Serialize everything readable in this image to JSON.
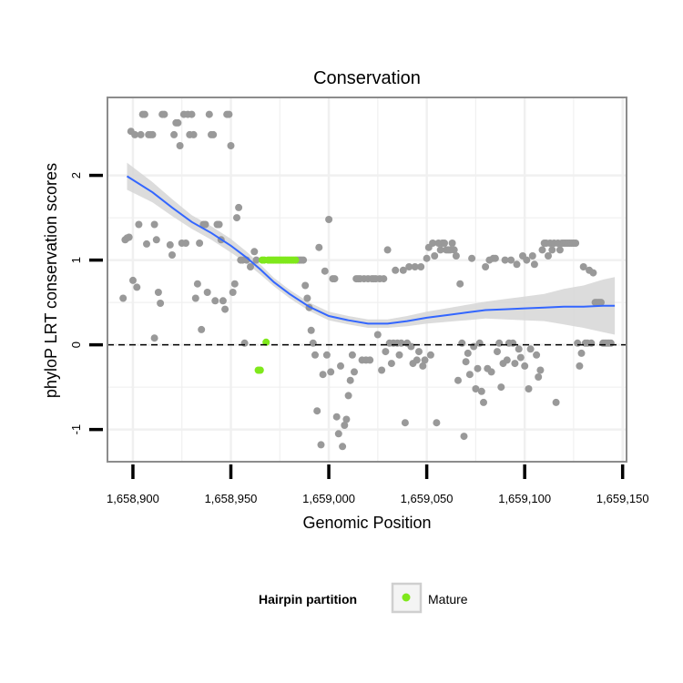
{
  "chart_data": {
    "type": "scatter",
    "title": "Conservation",
    "xlabel": "Genomic Position",
    "ylabel": "phyloP LRT conservation scores",
    "xlim": [
      1658887,
      1659152
    ],
    "ylim": [
      -1.38,
      2.92
    ],
    "x_ticks": [
      {
        "value": 1658900,
        "label": "1,658,900"
      },
      {
        "value": 1658950,
        "label": "1,658,950"
      },
      {
        "value": 1659000,
        "label": "1,659,000"
      },
      {
        "value": 1659050,
        "label": "1,659,050"
      },
      {
        "value": 1659100,
        "label": "1,659,100"
      },
      {
        "value": 1659150,
        "label": "1,659,150"
      }
    ],
    "y_ticks": [
      {
        "value": -1,
        "label": "-1"
      },
      {
        "value": 0,
        "label": "0"
      },
      {
        "value": 1,
        "label": "1"
      },
      {
        "value": 2,
        "label": "2"
      }
    ],
    "reference_line": {
      "y": 0,
      "style": "dashed"
    },
    "grid": true,
    "colors": {
      "other": "#999999",
      "mature": "#7fe81b",
      "smooth": "#3366ff",
      "ribbon": "#d6d6d6",
      "grid": "#f0f0f0",
      "border": "#8c8c8c"
    },
    "legend": {
      "title": "Hairpin partition",
      "position": "bottom",
      "entries": [
        {
          "label": "Mature",
          "color": "#7fe81b"
        }
      ]
    },
    "series": [
      {
        "name": "Other",
        "color": "#999999",
        "points": [
          [
            1658895,
            0.55
          ],
          [
            1658896,
            1.24
          ],
          [
            1658897,
            1.26
          ],
          [
            1658898,
            1.27
          ],
          [
            1658899,
            2.52
          ],
          [
            1658900,
            0.76
          ],
          [
            1658901,
            2.48
          ],
          [
            1658902,
            0.68
          ],
          [
            1658903,
            1.42
          ],
          [
            1658904,
            2.48
          ],
          [
            1658905,
            2.72
          ],
          [
            1658906,
            2.72
          ],
          [
            1658907,
            1.19
          ],
          [
            1658908,
            2.48
          ],
          [
            1658909,
            2.48
          ],
          [
            1658910,
            2.48
          ],
          [
            1658911,
            1.42
          ],
          [
            1658911,
            0.08
          ],
          [
            1658912,
            1.24
          ],
          [
            1658913,
            0.62
          ],
          [
            1658914,
            0.49
          ],
          [
            1658915,
            2.72
          ],
          [
            1658916,
            2.72
          ],
          [
            1658919,
            1.18
          ],
          [
            1658920,
            1.06
          ],
          [
            1658921,
            2.48
          ],
          [
            1658922,
            2.62
          ],
          [
            1658923,
            2.62
          ],
          [
            1658924,
            2.35
          ],
          [
            1658925,
            1.2
          ],
          [
            1658926,
            2.72
          ],
          [
            1658927,
            1.2
          ],
          [
            1658928,
            2.72
          ],
          [
            1658929,
            2.48
          ],
          [
            1658930,
            2.72
          ],
          [
            1658931,
            2.48
          ],
          [
            1658932,
            0.55
          ],
          [
            1658933,
            0.72
          ],
          [
            1658934,
            1.2
          ],
          [
            1658935,
            0.18
          ],
          [
            1658936,
            1.42
          ],
          [
            1658937,
            1.42
          ],
          [
            1658938,
            0.62
          ],
          [
            1658939,
            2.72
          ],
          [
            1658940,
            2.48
          ],
          [
            1658941,
            2.48
          ],
          [
            1658942,
            0.52
          ],
          [
            1658943,
            1.42
          ],
          [
            1658944,
            1.42
          ],
          [
            1658945,
            1.24
          ],
          [
            1658946,
            0.52
          ],
          [
            1658947,
            0.42
          ],
          [
            1658948,
            2.72
          ],
          [
            1658949,
            2.72
          ],
          [
            1658950,
            2.35
          ],
          [
            1658951,
            0.62
          ],
          [
            1658952,
            0.72
          ],
          [
            1658953,
            1.5
          ],
          [
            1658954,
            1.62
          ],
          [
            1658955,
            1.0
          ],
          [
            1658956,
            1.0
          ],
          [
            1658957,
            0.02
          ],
          [
            1658958,
            1.0
          ],
          [
            1658960,
            0.92
          ],
          [
            1658962,
            1.1
          ],
          [
            1658963,
            1.0
          ],
          [
            1658984,
            1.0
          ],
          [
            1658985,
            1.0
          ],
          [
            1658986,
            1.0
          ],
          [
            1658987,
            1.0
          ],
          [
            1658988,
            0.7
          ],
          [
            1658989,
            0.55
          ],
          [
            1658990,
            0.44
          ],
          [
            1658991,
            0.17
          ],
          [
            1658992,
            0.02
          ],
          [
            1658993,
            -0.12
          ],
          [
            1658994,
            -0.78
          ],
          [
            1658995,
            1.15
          ],
          [
            1658996,
            -1.18
          ],
          [
            1658997,
            -0.35
          ],
          [
            1658998,
            0.87
          ],
          [
            1658999,
            -0.12
          ],
          [
            1659000,
            1.48
          ],
          [
            1659001,
            -0.32
          ],
          [
            1659002,
            0.78
          ],
          [
            1659003,
            0.78
          ],
          [
            1659004,
            -0.85
          ],
          [
            1659005,
            -1.05
          ],
          [
            1659006,
            -0.25
          ],
          [
            1659007,
            -1.2
          ],
          [
            1659008,
            -0.95
          ],
          [
            1659009,
            -0.88
          ],
          [
            1659010,
            -0.6
          ],
          [
            1659011,
            -0.42
          ],
          [
            1659012,
            -0.12
          ],
          [
            1659013,
            -0.32
          ],
          [
            1659014,
            0.78
          ],
          [
            1659015,
            0.78
          ],
          [
            1659016,
            0.78
          ],
          [
            1659017,
            -0.18
          ],
          [
            1659018,
            0.78
          ],
          [
            1659019,
            -0.18
          ],
          [
            1659020,
            0.78
          ],
          [
            1659021,
            -0.18
          ],
          [
            1659022,
            0.78
          ],
          [
            1659023,
            0.78
          ],
          [
            1659024,
            0.78
          ],
          [
            1659025,
            0.12
          ],
          [
            1659026,
            0.78
          ],
          [
            1659027,
            -0.3
          ],
          [
            1659028,
            0.78
          ],
          [
            1659029,
            -0.08
          ],
          [
            1659030,
            1.12
          ],
          [
            1659031,
            0.02
          ],
          [
            1659032,
            -0.22
          ],
          [
            1659033,
            0.02
          ],
          [
            1659034,
            0.88
          ],
          [
            1659035,
            0.02
          ],
          [
            1659036,
            -0.12
          ],
          [
            1659037,
            0.02
          ],
          [
            1659038,
            0.88
          ],
          [
            1659039,
            -0.92
          ],
          [
            1659040,
            0.02
          ],
          [
            1659041,
            0.92
          ],
          [
            1659042,
            -0.02
          ],
          [
            1659043,
            -0.22
          ],
          [
            1659044,
            0.92
          ],
          [
            1659045,
            -0.18
          ],
          [
            1659046,
            -0.08
          ],
          [
            1659047,
            0.92
          ],
          [
            1659048,
            -0.25
          ],
          [
            1659049,
            -0.18
          ],
          [
            1659050,
            1.02
          ],
          [
            1659051,
            1.15
          ],
          [
            1659052,
            -0.12
          ],
          [
            1659053,
            1.2
          ],
          [
            1659054,
            1.05
          ],
          [
            1659055,
            -0.92
          ],
          [
            1659056,
            1.2
          ],
          [
            1659057,
            1.12
          ],
          [
            1659058,
            1.2
          ],
          [
            1659059,
            1.2
          ],
          [
            1659060,
            1.12
          ],
          [
            1659061,
            1.12
          ],
          [
            1659062,
            1.12
          ],
          [
            1659063,
            1.2
          ],
          [
            1659064,
            1.12
          ],
          [
            1659065,
            1.05
          ],
          [
            1659066,
            -0.42
          ],
          [
            1659067,
            0.72
          ],
          [
            1659068,
            0.02
          ],
          [
            1659069,
            -1.08
          ],
          [
            1659070,
            -0.2
          ],
          [
            1659071,
            -0.1
          ],
          [
            1659072,
            -0.35
          ],
          [
            1659073,
            1.02
          ],
          [
            1659074,
            -0.02
          ],
          [
            1659075,
            -0.52
          ],
          [
            1659076,
            -0.28
          ],
          [
            1659077,
            0.02
          ],
          [
            1659078,
            -0.55
          ],
          [
            1659079,
            -0.68
          ],
          [
            1659080,
            0.92
          ],
          [
            1659081,
            -0.28
          ],
          [
            1659082,
            1.0
          ],
          [
            1659083,
            -0.32
          ],
          [
            1659084,
            1.02
          ],
          [
            1659085,
            1.02
          ],
          [
            1659086,
            -0.08
          ],
          [
            1659087,
            0.02
          ],
          [
            1659088,
            -0.5
          ],
          [
            1659089,
            -0.22
          ],
          [
            1659090,
            1.0
          ],
          [
            1659091,
            -0.18
          ],
          [
            1659092,
            0.02
          ],
          [
            1659093,
            1.0
          ],
          [
            1659094,
            0.02
          ],
          [
            1659095,
            -0.22
          ],
          [
            1659096,
            0.95
          ],
          [
            1659097,
            -0.05
          ],
          [
            1659098,
            -0.15
          ],
          [
            1659099,
            1.05
          ],
          [
            1659100,
            -0.25
          ],
          [
            1659101,
            1.0
          ],
          [
            1659102,
            -0.52
          ],
          [
            1659103,
            -0.05
          ],
          [
            1659104,
            1.05
          ],
          [
            1659105,
            0.95
          ],
          [
            1659106,
            -0.12
          ],
          [
            1659107,
            -0.38
          ],
          [
            1659108,
            -0.3
          ],
          [
            1659109,
            1.12
          ],
          [
            1659110,
            1.2
          ],
          [
            1659111,
            1.2
          ],
          [
            1659112,
            1.05
          ],
          [
            1659113,
            1.2
          ],
          [
            1659114,
            1.12
          ],
          [
            1659115,
            1.2
          ],
          [
            1659116,
            -0.68
          ],
          [
            1659117,
            1.2
          ],
          [
            1659118,
            1.12
          ],
          [
            1659119,
            1.2
          ],
          [
            1659120,
            1.2
          ],
          [
            1659121,
            1.2
          ],
          [
            1659122,
            1.2
          ],
          [
            1659123,
            1.2
          ],
          [
            1659124,
            1.2
          ],
          [
            1659125,
            1.2
          ],
          [
            1659126,
            1.2
          ],
          [
            1659127,
            0.02
          ],
          [
            1659128,
            -0.25
          ],
          [
            1659129,
            -0.1
          ],
          [
            1659130,
            0.92
          ],
          [
            1659131,
            0.02
          ],
          [
            1659132,
            0.02
          ],
          [
            1659133,
            0.88
          ],
          [
            1659134,
            0.02
          ],
          [
            1659135,
            0.85
          ],
          [
            1659136,
            0.5
          ],
          [
            1659137,
            0.5
          ],
          [
            1659138,
            0.5
          ],
          [
            1659139,
            0.5
          ],
          [
            1659140,
            0.02
          ],
          [
            1659141,
            0.02
          ],
          [
            1659142,
            0.02
          ],
          [
            1659143,
            0.02
          ],
          [
            1659144,
            0.02
          ]
        ]
      },
      {
        "name": "Mature",
        "color": "#7fe81b",
        "points": [
          [
            1658964,
            -0.3
          ],
          [
            1658965,
            -0.3
          ],
          [
            1658966,
            1.0
          ],
          [
            1658967,
            1.0
          ],
          [
            1658968,
            0.03
          ],
          [
            1658969,
            1.0
          ],
          [
            1658970,
            1.0
          ],
          [
            1658971,
            1.0
          ],
          [
            1658972,
            1.0
          ],
          [
            1658973,
            1.0
          ],
          [
            1658974,
            1.0
          ],
          [
            1658975,
            1.0
          ],
          [
            1658976,
            1.0
          ],
          [
            1658977,
            1.0
          ],
          [
            1658978,
            1.0
          ],
          [
            1658979,
            1.0
          ],
          [
            1658980,
            1.0
          ],
          [
            1658981,
            1.0
          ],
          [
            1658982,
            1.0
          ],
          [
            1658983,
            1.0
          ]
        ]
      }
    ],
    "smooth": {
      "x": [
        1658897,
        1658910,
        1658920,
        1658930,
        1658940,
        1658950,
        1658958,
        1658965,
        1658972,
        1658980,
        1658990,
        1659000,
        1659010,
        1659020,
        1659030,
        1659040,
        1659050,
        1659060,
        1659070,
        1659080,
        1659090,
        1659100,
        1659110,
        1659120,
        1659130,
        1659140,
        1659146
      ],
      "y": [
        1.99,
        1.8,
        1.62,
        1.45,
        1.32,
        1.17,
        1.03,
        0.89,
        0.74,
        0.6,
        0.45,
        0.34,
        0.29,
        0.25,
        0.25,
        0.28,
        0.32,
        0.35,
        0.38,
        0.41,
        0.42,
        0.43,
        0.44,
        0.45,
        0.45,
        0.46,
        0.46
      ],
      "lower": [
        1.83,
        1.68,
        1.52,
        1.37,
        1.24,
        1.09,
        0.96,
        0.83,
        0.69,
        0.55,
        0.4,
        0.29,
        0.24,
        0.2,
        0.2,
        0.22,
        0.25,
        0.27,
        0.29,
        0.31,
        0.3,
        0.29,
        0.28,
        0.24,
        0.2,
        0.15,
        0.12
      ],
      "upper": [
        2.15,
        1.92,
        1.72,
        1.53,
        1.4,
        1.25,
        1.1,
        0.95,
        0.79,
        0.65,
        0.5,
        0.39,
        0.34,
        0.3,
        0.3,
        0.34,
        0.39,
        0.43,
        0.47,
        0.51,
        0.54,
        0.57,
        0.6,
        0.66,
        0.7,
        0.77,
        0.8
      ]
    }
  }
}
